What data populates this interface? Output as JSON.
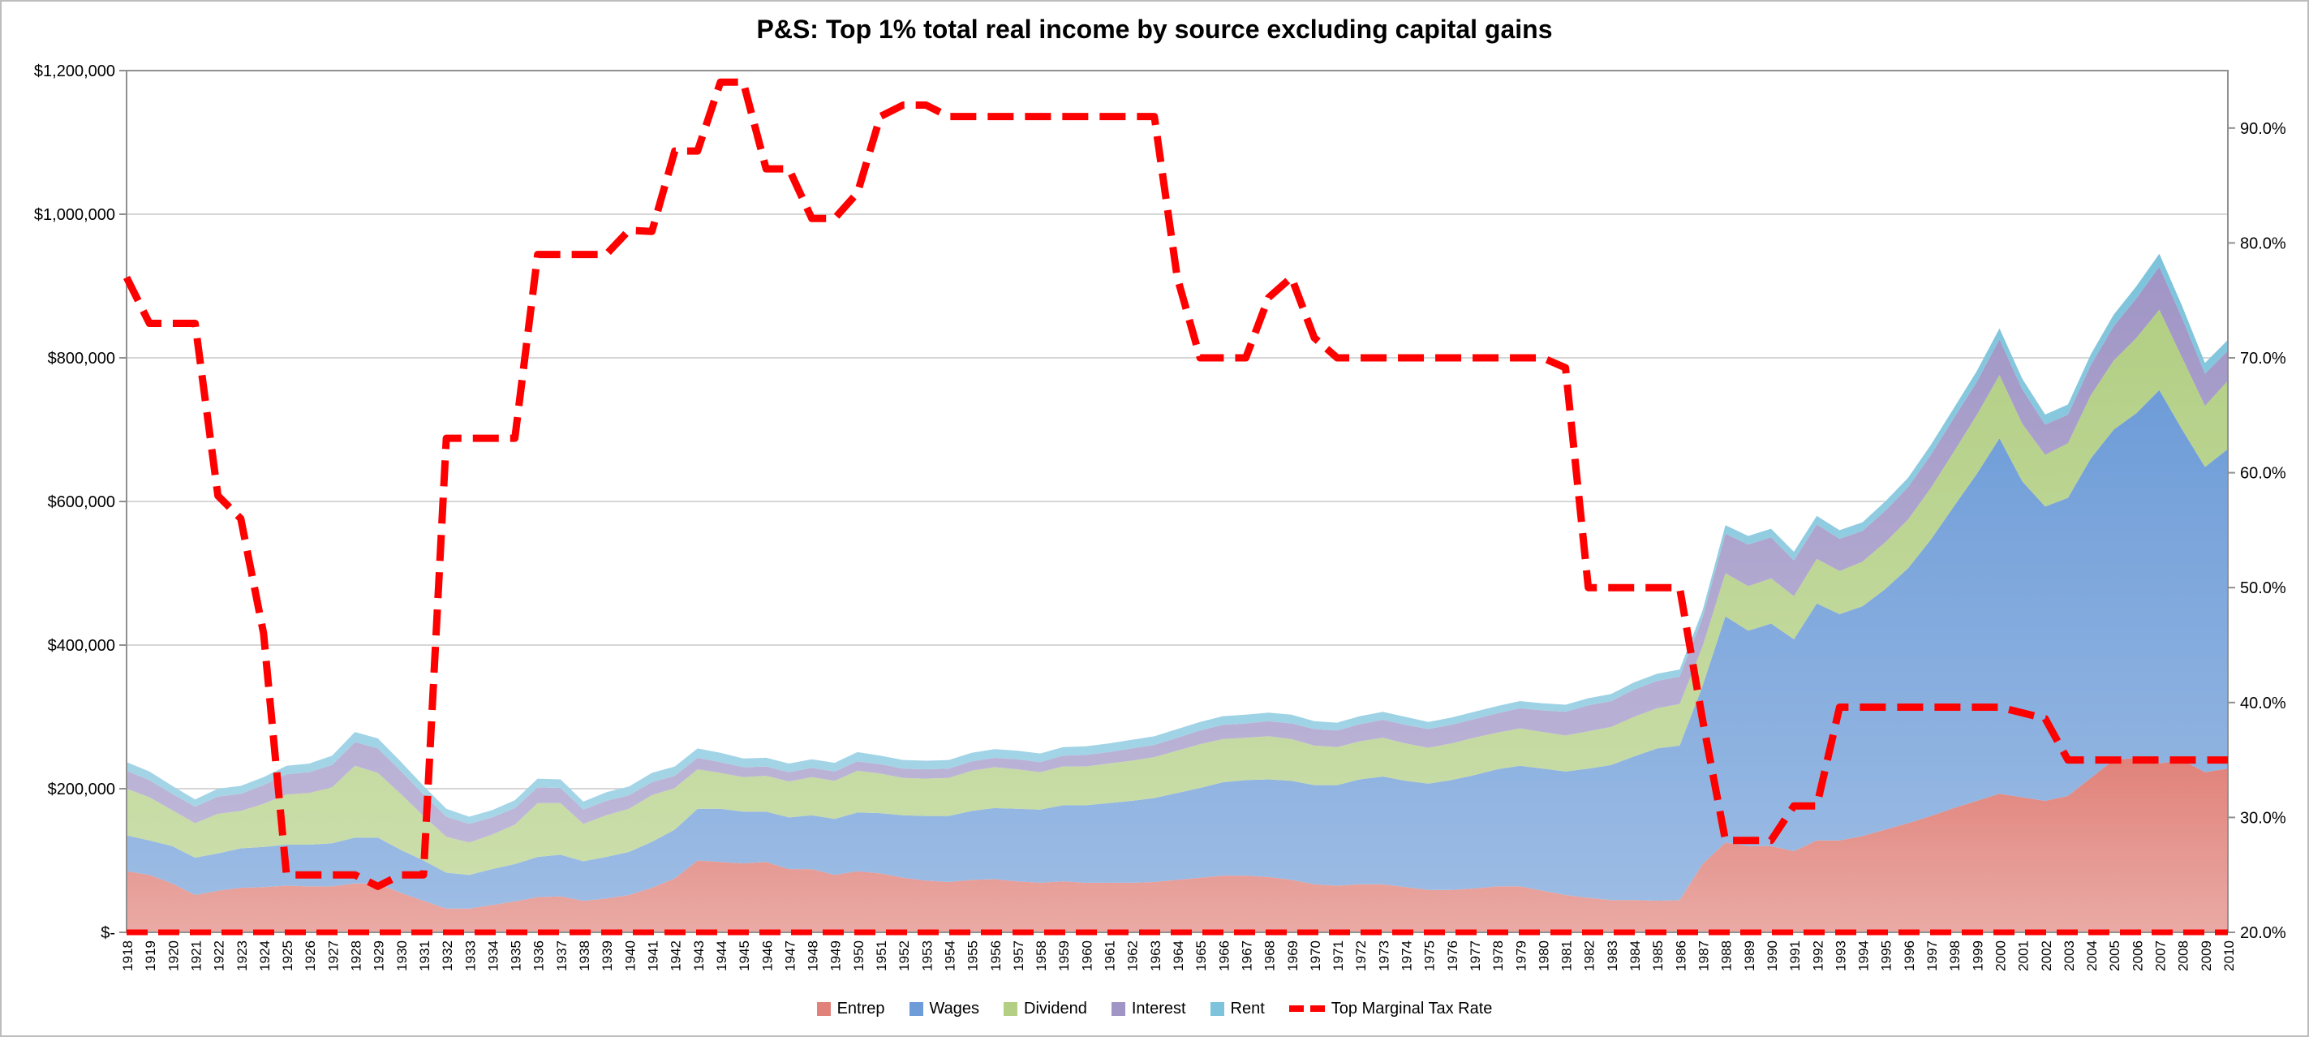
{
  "chart_data": {
    "type": "area",
    "stacked": true,
    "title": "P&S: Top 1% total real income by source excluding capital gains",
    "grid": "horizontal",
    "legend_position": "bottom",
    "x": [
      1918,
      1919,
      1920,
      1921,
      1922,
      1923,
      1924,
      1925,
      1926,
      1927,
      1928,
      1929,
      1930,
      1931,
      1932,
      1933,
      1934,
      1935,
      1936,
      1937,
      1938,
      1939,
      1940,
      1941,
      1942,
      1943,
      1944,
      1945,
      1946,
      1947,
      1948,
      1949,
      1950,
      1951,
      1952,
      1953,
      1954,
      1955,
      1956,
      1957,
      1958,
      1959,
      1960,
      1961,
      1962,
      1963,
      1964,
      1965,
      1966,
      1967,
      1968,
      1969,
      1970,
      1971,
      1972,
      1973,
      1974,
      1975,
      1976,
      1977,
      1978,
      1979,
      1980,
      1981,
      1982,
      1983,
      1984,
      1985,
      1986,
      1987,
      1988,
      1989,
      1990,
      1991,
      1992,
      1993,
      1994,
      1995,
      1996,
      1997,
      1998,
      1999,
      2000,
      2001,
      2002,
      2003,
      2004,
      2005,
      2006,
      2007,
      2008,
      2009,
      2010
    ],
    "left_axis": {
      "min": 0,
      "max": 1200000,
      "ticks": [
        "$-",
        "$200,000",
        "$400,000",
        "$600,000",
        "$800,000",
        "$1,000,000",
        "$1,200,000"
      ]
    },
    "right_axis": {
      "min": 20,
      "max": 95,
      "ticks": [
        "20.0%",
        "30.0%",
        "40.0%",
        "50.0%",
        "60.0%",
        "70.0%",
        "80.0%",
        "90.0%"
      ]
    },
    "series": [
      {
        "name": "Entrep",
        "color": "#E0827A",
        "values": [
          85000,
          80000,
          68000,
          52000,
          58000,
          62000,
          63000,
          65000,
          64000,
          64000,
          68000,
          68000,
          55000,
          44000,
          33000,
          33000,
          38000,
          43000,
          49000,
          50000,
          44000,
          47000,
          52000,
          62000,
          75000,
          100000,
          98000,
          96000,
          98000,
          88000,
          88000,
          80000,
          85000,
          82000,
          76000,
          72000,
          70000,
          73000,
          74000,
          71000,
          69000,
          71000,
          69000,
          69000,
          69000,
          70000,
          73000,
          76000,
          79000,
          79000,
          77000,
          73000,
          67000,
          65000,
          67000,
          67000,
          63000,
          59000,
          59000,
          61000,
          64000,
          64000,
          58000,
          52000,
          48000,
          45000,
          45000,
          44000,
          45000,
          95000,
          125000,
          120000,
          120000,
          113000,
          128000,
          128000,
          134000,
          143000,
          152000,
          162000,
          173000,
          183000,
          193000,
          188000,
          183000,
          190000,
          215000,
          240000,
          243000,
          235000,
          240000,
          223000,
          228000
        ]
      },
      {
        "name": "Wages",
        "color": "#6E9CD8",
        "values": [
          50000,
          48000,
          52000,
          52000,
          52000,
          55000,
          56000,
          57000,
          58000,
          60000,
          64000,
          64000,
          60000,
          56000,
          50000,
          47000,
          50000,
          52000,
          56000,
          58000,
          55000,
          58000,
          60000,
          64000,
          68000,
          72000,
          74000,
          72000,
          70000,
          72000,
          75000,
          78000,
          82000,
          84000,
          87000,
          90000,
          92000,
          96000,
          99000,
          101000,
          102000,
          106000,
          108000,
          111000,
          114000,
          117000,
          121000,
          125000,
          130000,
          133000,
          136000,
          138000,
          138000,
          140000,
          146000,
          150000,
          148000,
          148000,
          153000,
          158000,
          163000,
          168000,
          170000,
          172000,
          180000,
          188000,
          200000,
          212000,
          215000,
          248000,
          315000,
          300000,
          310000,
          295000,
          330000,
          315000,
          320000,
          335000,
          355000,
          385000,
          420000,
          455000,
          495000,
          440000,
          410000,
          415000,
          445000,
          460000,
          480000,
          520000,
          460000,
          425000,
          445000
        ]
      },
      {
        "name": "Dividend",
        "color": "#B2CF84",
        "values": [
          65000,
          60000,
          50000,
          48000,
          55000,
          52000,
          60000,
          70000,
          72000,
          78000,
          100000,
          90000,
          78000,
          62000,
          50000,
          45000,
          48000,
          55000,
          75000,
          72000,
          52000,
          58000,
          60000,
          65000,
          58000,
          55000,
          50000,
          48000,
          50000,
          50000,
          53000,
          53000,
          58000,
          55000,
          52000,
          52000,
          53000,
          56000,
          57000,
          55000,
          52000,
          54000,
          54000,
          55000,
          56000,
          57000,
          59000,
          61000,
          60000,
          59000,
          60000,
          58000,
          55000,
          53000,
          53000,
          54000,
          52000,
          50000,
          51000,
          52000,
          51000,
          52000,
          51000,
          50000,
          52000,
          53000,
          55000,
          56000,
          58000,
          55000,
          60000,
          62000,
          63000,
          60000,
          62000,
          60000,
          62000,
          65000,
          68000,
          72000,
          76000,
          82000,
          88000,
          80000,
          72000,
          76000,
          88000,
          96000,
          105000,
          112000,
          100000,
          85000,
          95000
        ]
      },
      {
        "name": "Interest",
        "color": "#A095C5",
        "values": [
          25000,
          24000,
          23000,
          23000,
          24000,
          24000,
          26000,
          28000,
          29000,
          31000,
          33000,
          34000,
          32000,
          30000,
          28000,
          26000,
          24000,
          23000,
          22000,
          21000,
          20000,
          20000,
          19000,
          18000,
          17000,
          16000,
          15000,
          14000,
          13000,
          13000,
          13000,
          13000,
          13000,
          13000,
          13000,
          13000,
          13000,
          13000,
          13000,
          14000,
          14000,
          15000,
          16000,
          16000,
          17000,
          17000,
          18000,
          19000,
          20000,
          20000,
          21000,
          22000,
          23000,
          23000,
          24000,
          25000,
          26000,
          26000,
          26000,
          26000,
          27000,
          28000,
          30000,
          33000,
          36000,
          36000,
          38000,
          38000,
          38000,
          40000,
          55000,
          58000,
          57000,
          50000,
          48000,
          45000,
          43000,
          44000,
          45000,
          46000,
          47000,
          46000,
          50000,
          48000,
          42000,
          40000,
          42000,
          48000,
          55000,
          60000,
          55000,
          45000,
          42000
        ]
      },
      {
        "name": "Rent",
        "color": "#7CC3DB",
        "values": [
          12000,
          12000,
          11000,
          10000,
          11000,
          11000,
          11000,
          12000,
          12000,
          13000,
          14000,
          14000,
          13000,
          12000,
          11000,
          10000,
          10000,
          11000,
          12000,
          12000,
          11000,
          12000,
          12000,
          13000,
          13000,
          13000,
          13000,
          12000,
          12000,
          12000,
          12000,
          12000,
          13000,
          12000,
          12000,
          12000,
          12000,
          12000,
          12000,
          12000,
          12000,
          12000,
          12000,
          12000,
          12000,
          12000,
          12000,
          12000,
          12000,
          12000,
          12000,
          12000,
          11000,
          11000,
          11000,
          11000,
          11000,
          10000,
          10000,
          10000,
          10000,
          10000,
          10000,
          10000,
          10000,
          10000,
          10000,
          10000,
          10000,
          10000,
          12000,
          12000,
          12000,
          12000,
          12000,
          12000,
          12000,
          13000,
          13000,
          14000,
          14000,
          15000,
          15000,
          15000,
          14000,
          14000,
          15000,
          16000,
          17000,
          18000,
          17000,
          15000,
          15000
        ]
      }
    ],
    "line_series": {
      "name": "Top Marginal Tax Rate",
      "color": "#FF0000",
      "style": "dashed",
      "axis": "right",
      "values_percent": [
        77,
        73,
        73,
        73,
        58,
        56,
        46,
        25,
        25,
        25,
        25,
        24,
        25,
        25,
        63,
        63,
        63,
        63,
        79,
        79,
        79,
        79,
        81.1,
        81,
        88,
        88,
        94,
        94,
        86.45,
        86.45,
        82.13,
        82.13,
        84.36,
        91,
        92,
        92,
        91,
        91,
        91,
        91,
        91,
        91,
        91,
        91,
        91,
        91,
        77,
        70,
        70,
        70,
        75.25,
        77,
        71.75,
        70,
        70,
        70,
        70,
        70,
        70,
        70,
        70,
        70,
        70,
        69.13,
        50,
        50,
        50,
        50,
        50,
        38.5,
        28,
        28,
        28,
        31,
        31,
        39.6,
        39.6,
        39.6,
        39.6,
        39.6,
        39.6,
        39.6,
        39.6,
        39.1,
        38.6,
        35,
        35,
        35,
        35,
        35,
        35,
        35,
        35
      ]
    },
    "baseline_style": "red-dashed"
  }
}
